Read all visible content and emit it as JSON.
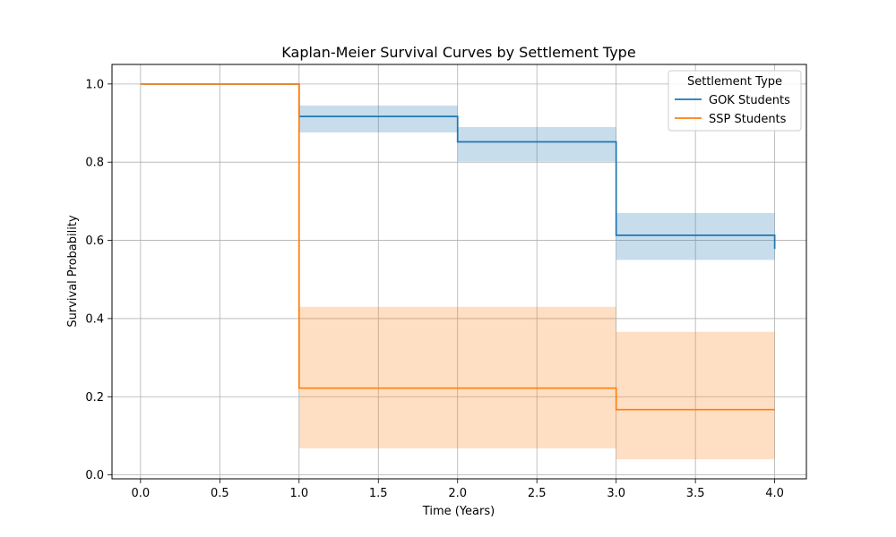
{
  "chart_data": {
    "type": "line",
    "subtype": "step-with-confidence-bands",
    "title": "Kaplan-Meier Survival Curves by Settlement Type",
    "xlabel": "Time (Years)",
    "ylabel": "Survival Probability",
    "xlim": [
      -0.18,
      4.2
    ],
    "ylim": [
      -0.01,
      1.05
    ],
    "xticks": [
      0.0,
      0.5,
      1.0,
      1.5,
      2.0,
      2.5,
      3.0,
      3.5,
      4.0
    ],
    "xtick_labels": [
      "0.0",
      "0.5",
      "1.0",
      "1.5",
      "2.0",
      "2.5",
      "3.0",
      "3.5",
      "4.0"
    ],
    "yticks": [
      0.0,
      0.2,
      0.4,
      0.6,
      0.8,
      1.0
    ],
    "ytick_labels": [
      "0.0",
      "0.2",
      "0.4",
      "0.6",
      "0.8",
      "1.0"
    ],
    "grid": true,
    "legend": {
      "title": "Settlement Type",
      "placement": "upper-right"
    },
    "series": [
      {
        "name": "GOK Students",
        "color": "#1f77b4",
        "steps": [
          {
            "x": 0.0,
            "y": 1.0
          },
          {
            "x": 1.0,
            "y": 0.917
          },
          {
            "x": 2.0,
            "y": 0.852
          },
          {
            "x": 3.0,
            "y": 0.613
          },
          {
            "x": 4.0,
            "y": 0.578
          }
        ],
        "end_x": 4.0,
        "ci": [
          {
            "x0": 1.0,
            "x1": 2.0,
            "lower": 0.876,
            "upper": 0.945
          },
          {
            "x0": 2.0,
            "x1": 3.0,
            "lower": 0.802,
            "upper": 0.89
          },
          {
            "x0": 3.0,
            "x1": 4.0,
            "lower": 0.55,
            "upper": 0.67
          }
        ]
      },
      {
        "name": "SSP Students",
        "color": "#ff7f0e",
        "steps": [
          {
            "x": 0.0,
            "y": 1.0
          },
          {
            "x": 1.0,
            "y": 0.222
          },
          {
            "x": 3.0,
            "y": 0.167
          }
        ],
        "end_x": 4.0,
        "ci": [
          {
            "x0": 1.0,
            "x1": 3.0,
            "lower": 0.068,
            "upper": 0.43
          },
          {
            "x0": 3.0,
            "x1": 4.0,
            "lower": 0.04,
            "upper": 0.366
          }
        ]
      }
    ]
  }
}
